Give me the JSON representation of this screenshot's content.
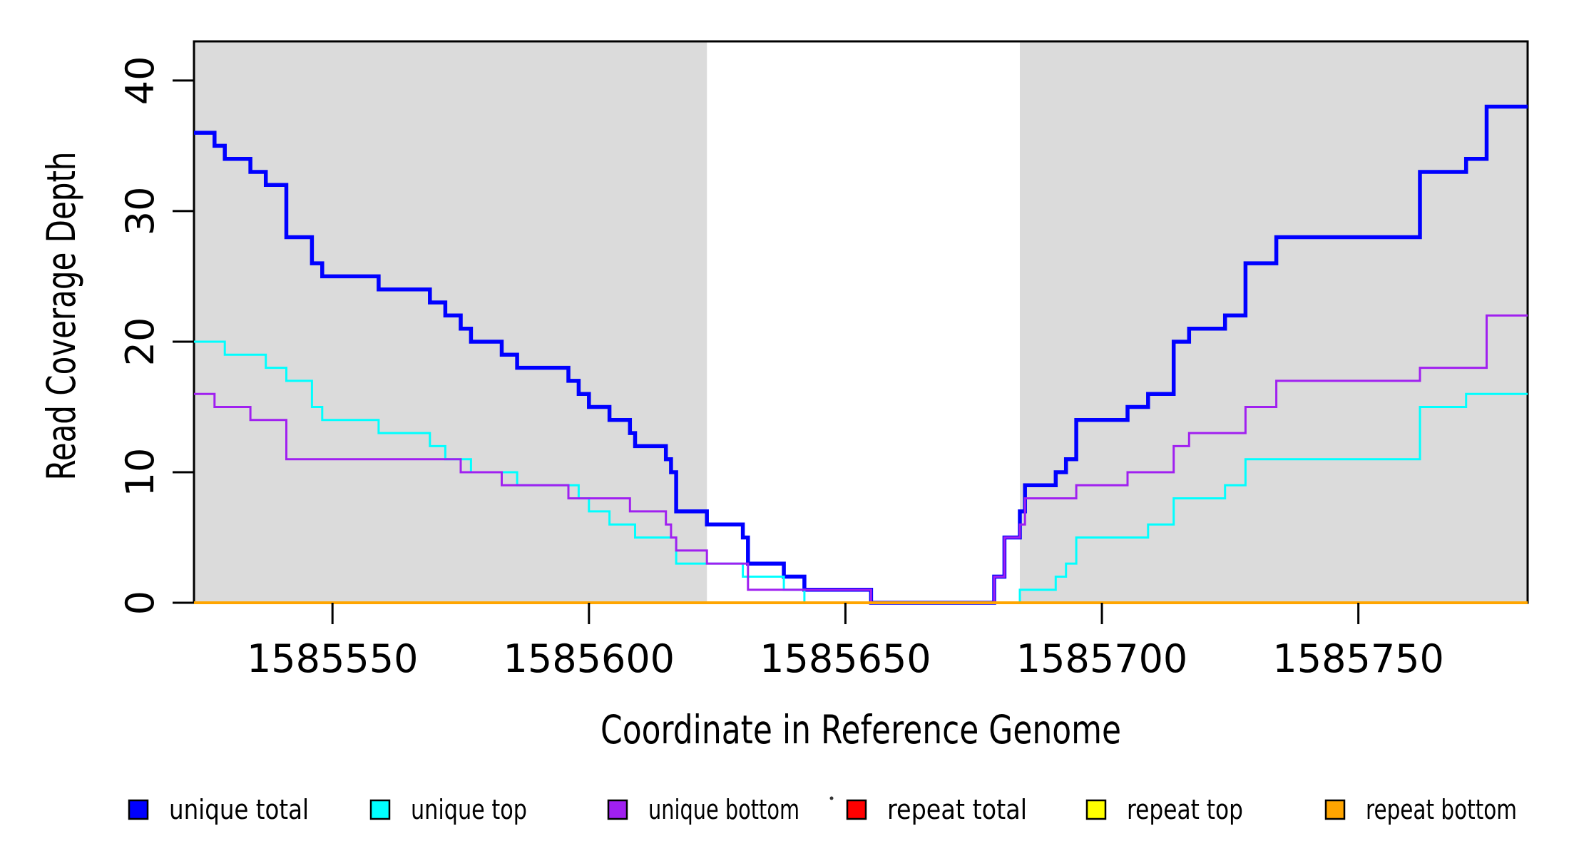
{
  "chart_data": {
    "type": "step",
    "title": "",
    "xlabel": "Coordinate in Reference Genome",
    "ylabel": "Read Coverage Depth",
    "xlim": [
      1585523,
      1585783
    ],
    "ylim": [
      0,
      43
    ],
    "grid": false,
    "legend_position": "bottom",
    "background_color": "#FFFFFF",
    "masked_region_color": "#DBDBDB",
    "frame_color": "#000000",
    "x_ticks": [
      {
        "value": 1585550,
        "label": "1585550"
      },
      {
        "value": 1585600,
        "label": "1585600"
      },
      {
        "value": 1585650,
        "label": "1585650"
      },
      {
        "value": 1585700,
        "label": "1585700"
      },
      {
        "value": 1585750,
        "label": "1585750"
      }
    ],
    "y_ticks": [
      {
        "value": 0,
        "label": "0"
      },
      {
        "value": 10,
        "label": "10"
      },
      {
        "value": 20,
        "label": "20"
      },
      {
        "value": 30,
        "label": "30"
      },
      {
        "value": 40,
        "label": "40"
      }
    ],
    "shaded_regions": [
      {
        "name": "left-gray-block",
        "x0": 1585523,
        "x1": 1585623
      },
      {
        "name": "right-gray-block",
        "x0": 1585684,
        "x1": 1585783
      }
    ],
    "series": [
      {
        "name": "unique total",
        "color": "#0000FF",
        "line_width": 5.5,
        "steps": [
          [
            1585523,
            36
          ],
          [
            1585527,
            35
          ],
          [
            1585529,
            34
          ],
          [
            1585534,
            33
          ],
          [
            1585537,
            32
          ],
          [
            1585541,
            28
          ],
          [
            1585546,
            26
          ],
          [
            1585548,
            25
          ],
          [
            1585559,
            24
          ],
          [
            1585569,
            23
          ],
          [
            1585572,
            22
          ],
          [
            1585575,
            21
          ],
          [
            1585577,
            20
          ],
          [
            1585583,
            19
          ],
          [
            1585586,
            18
          ],
          [
            1585596,
            17
          ],
          [
            1585598,
            16
          ],
          [
            1585600,
            15
          ],
          [
            1585604,
            14
          ],
          [
            1585608,
            13
          ],
          [
            1585609,
            12
          ],
          [
            1585615,
            11
          ],
          [
            1585616,
            10
          ],
          [
            1585617,
            7
          ],
          [
            1585623,
            6
          ],
          [
            1585630,
            5
          ],
          [
            1585631,
            3
          ],
          [
            1585638,
            2
          ],
          [
            1585642,
            1
          ],
          [
            1585655,
            0
          ],
          [
            1585679,
            2
          ],
          [
            1585681,
            5
          ],
          [
            1585684,
            7
          ],
          [
            1585685,
            9
          ],
          [
            1585691,
            10
          ],
          [
            1585693,
            11
          ],
          [
            1585695,
            14
          ],
          [
            1585705,
            15
          ],
          [
            1585709,
            16
          ],
          [
            1585714,
            20
          ],
          [
            1585717,
            21
          ],
          [
            1585724,
            22
          ],
          [
            1585728,
            26
          ],
          [
            1585734,
            28
          ],
          [
            1585762,
            33
          ],
          [
            1585771,
            34
          ],
          [
            1585775,
            38
          ]
        ]
      },
      {
        "name": "unique top",
        "color": "#00FFFF",
        "line_width": 3,
        "steps": [
          [
            1585523,
            20
          ],
          [
            1585529,
            19
          ],
          [
            1585537,
            18
          ],
          [
            1585541,
            17
          ],
          [
            1585546,
            15
          ],
          [
            1585548,
            14
          ],
          [
            1585559,
            13
          ],
          [
            1585569,
            12
          ],
          [
            1585572,
            11
          ],
          [
            1585577,
            10
          ],
          [
            1585586,
            9
          ],
          [
            1585598,
            8
          ],
          [
            1585600,
            7
          ],
          [
            1585604,
            6
          ],
          [
            1585609,
            5
          ],
          [
            1585617,
            3
          ],
          [
            1585630,
            2
          ],
          [
            1585638,
            1
          ],
          [
            1585642,
            0
          ],
          [
            1585684,
            1
          ],
          [
            1585691,
            2
          ],
          [
            1585693,
            3
          ],
          [
            1585695,
            5
          ],
          [
            1585709,
            6
          ],
          [
            1585714,
            8
          ],
          [
            1585724,
            9
          ],
          [
            1585728,
            11
          ],
          [
            1585762,
            15
          ],
          [
            1585771,
            16
          ]
        ]
      },
      {
        "name": "unique bottom",
        "color": "#A020F0",
        "line_width": 3,
        "steps": [
          [
            1585523,
            16
          ],
          [
            1585527,
            15
          ],
          [
            1585534,
            14
          ],
          [
            1585541,
            11
          ],
          [
            1585575,
            10
          ],
          [
            1585583,
            9
          ],
          [
            1585596,
            8
          ],
          [
            1585608,
            7
          ],
          [
            1585615,
            6
          ],
          [
            1585616,
            5
          ],
          [
            1585617,
            4
          ],
          [
            1585623,
            3
          ],
          [
            1585631,
            1
          ],
          [
            1585655,
            0
          ],
          [
            1585679,
            2
          ],
          [
            1585681,
            5
          ],
          [
            1585684,
            6
          ],
          [
            1585685,
            8
          ],
          [
            1585695,
            9
          ],
          [
            1585705,
            10
          ],
          [
            1585714,
            12
          ],
          [
            1585717,
            13
          ],
          [
            1585728,
            15
          ],
          [
            1585734,
            17
          ],
          [
            1585762,
            18
          ],
          [
            1585775,
            22
          ]
        ]
      },
      {
        "name": "repeat total",
        "color": "#FF0000",
        "line_width": 3,
        "steps": [
          [
            1585523,
            0
          ]
        ]
      },
      {
        "name": "repeat top",
        "color": "#FFFF00",
        "line_width": 3,
        "steps": [
          [
            1585523,
            0
          ]
        ]
      },
      {
        "name": "repeat bottom",
        "color": "#FFA500",
        "line_width": 4,
        "steps": [
          [
            1585523,
            0
          ]
        ]
      }
    ],
    "legend": [
      {
        "label": "unique total",
        "color": "#0000FF"
      },
      {
        "label": "unique top",
        "color": "#00FFFF"
      },
      {
        "label": "unique bottom",
        "color": "#A020F0"
      },
      {
        "label": "repeat total",
        "color": "#FF0000"
      },
      {
        "label": "repeat top",
        "color": "#FFFF00"
      },
      {
        "label": "repeat bottom",
        "color": "#FFA500"
      }
    ]
  }
}
